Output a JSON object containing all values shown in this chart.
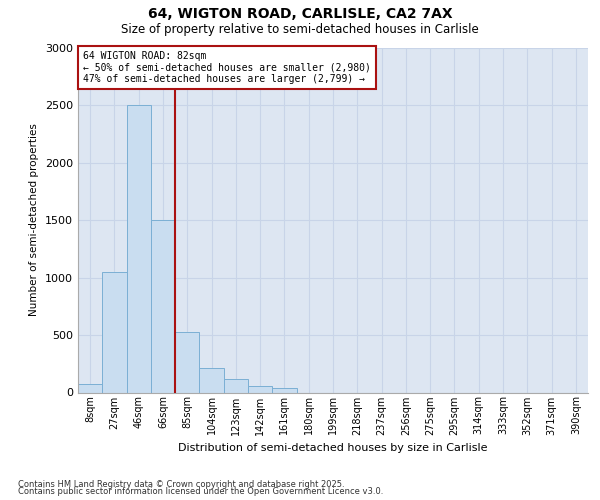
{
  "title1": "64, WIGTON ROAD, CARLISLE, CA2 7AX",
  "title2": "Size of property relative to semi-detached houses in Carlisle",
  "xlabel": "Distribution of semi-detached houses by size in Carlisle",
  "ylabel": "Number of semi-detached properties",
  "categories": [
    "8sqm",
    "27sqm",
    "46sqm",
    "66sqm",
    "85sqm",
    "104sqm",
    "123sqm",
    "142sqm",
    "161sqm",
    "180sqm",
    "199sqm",
    "218sqm",
    "237sqm",
    "256sqm",
    "275sqm",
    "295sqm",
    "314sqm",
    "333sqm",
    "352sqm",
    "371sqm",
    "390sqm"
  ],
  "values": [
    75,
    1050,
    2500,
    1500,
    530,
    210,
    115,
    60,
    40,
    0,
    0,
    0,
    0,
    0,
    0,
    0,
    0,
    0,
    0,
    0,
    0
  ],
  "bar_color": "#c9ddf0",
  "bar_edge_color": "#7bafd4",
  "vline_x_index": 3,
  "vline_color": "#aa1111",
  "vline_label": "64 WIGTON ROAD: 82sqm",
  "annotation_smaller": "← 50% of semi-detached houses are smaller (2,980)",
  "annotation_larger": "47% of semi-detached houses are larger (2,799) →",
  "box_color": "#aa1111",
  "ylim": [
    0,
    3000
  ],
  "yticks": [
    0,
    500,
    1000,
    1500,
    2000,
    2500,
    3000
  ],
  "grid_color": "#c8d4e8",
  "bg_color": "#dde6f2",
  "footnote1": "Contains HM Land Registry data © Crown copyright and database right 2025.",
  "footnote2": "Contains public sector information licensed under the Open Government Licence v3.0."
}
